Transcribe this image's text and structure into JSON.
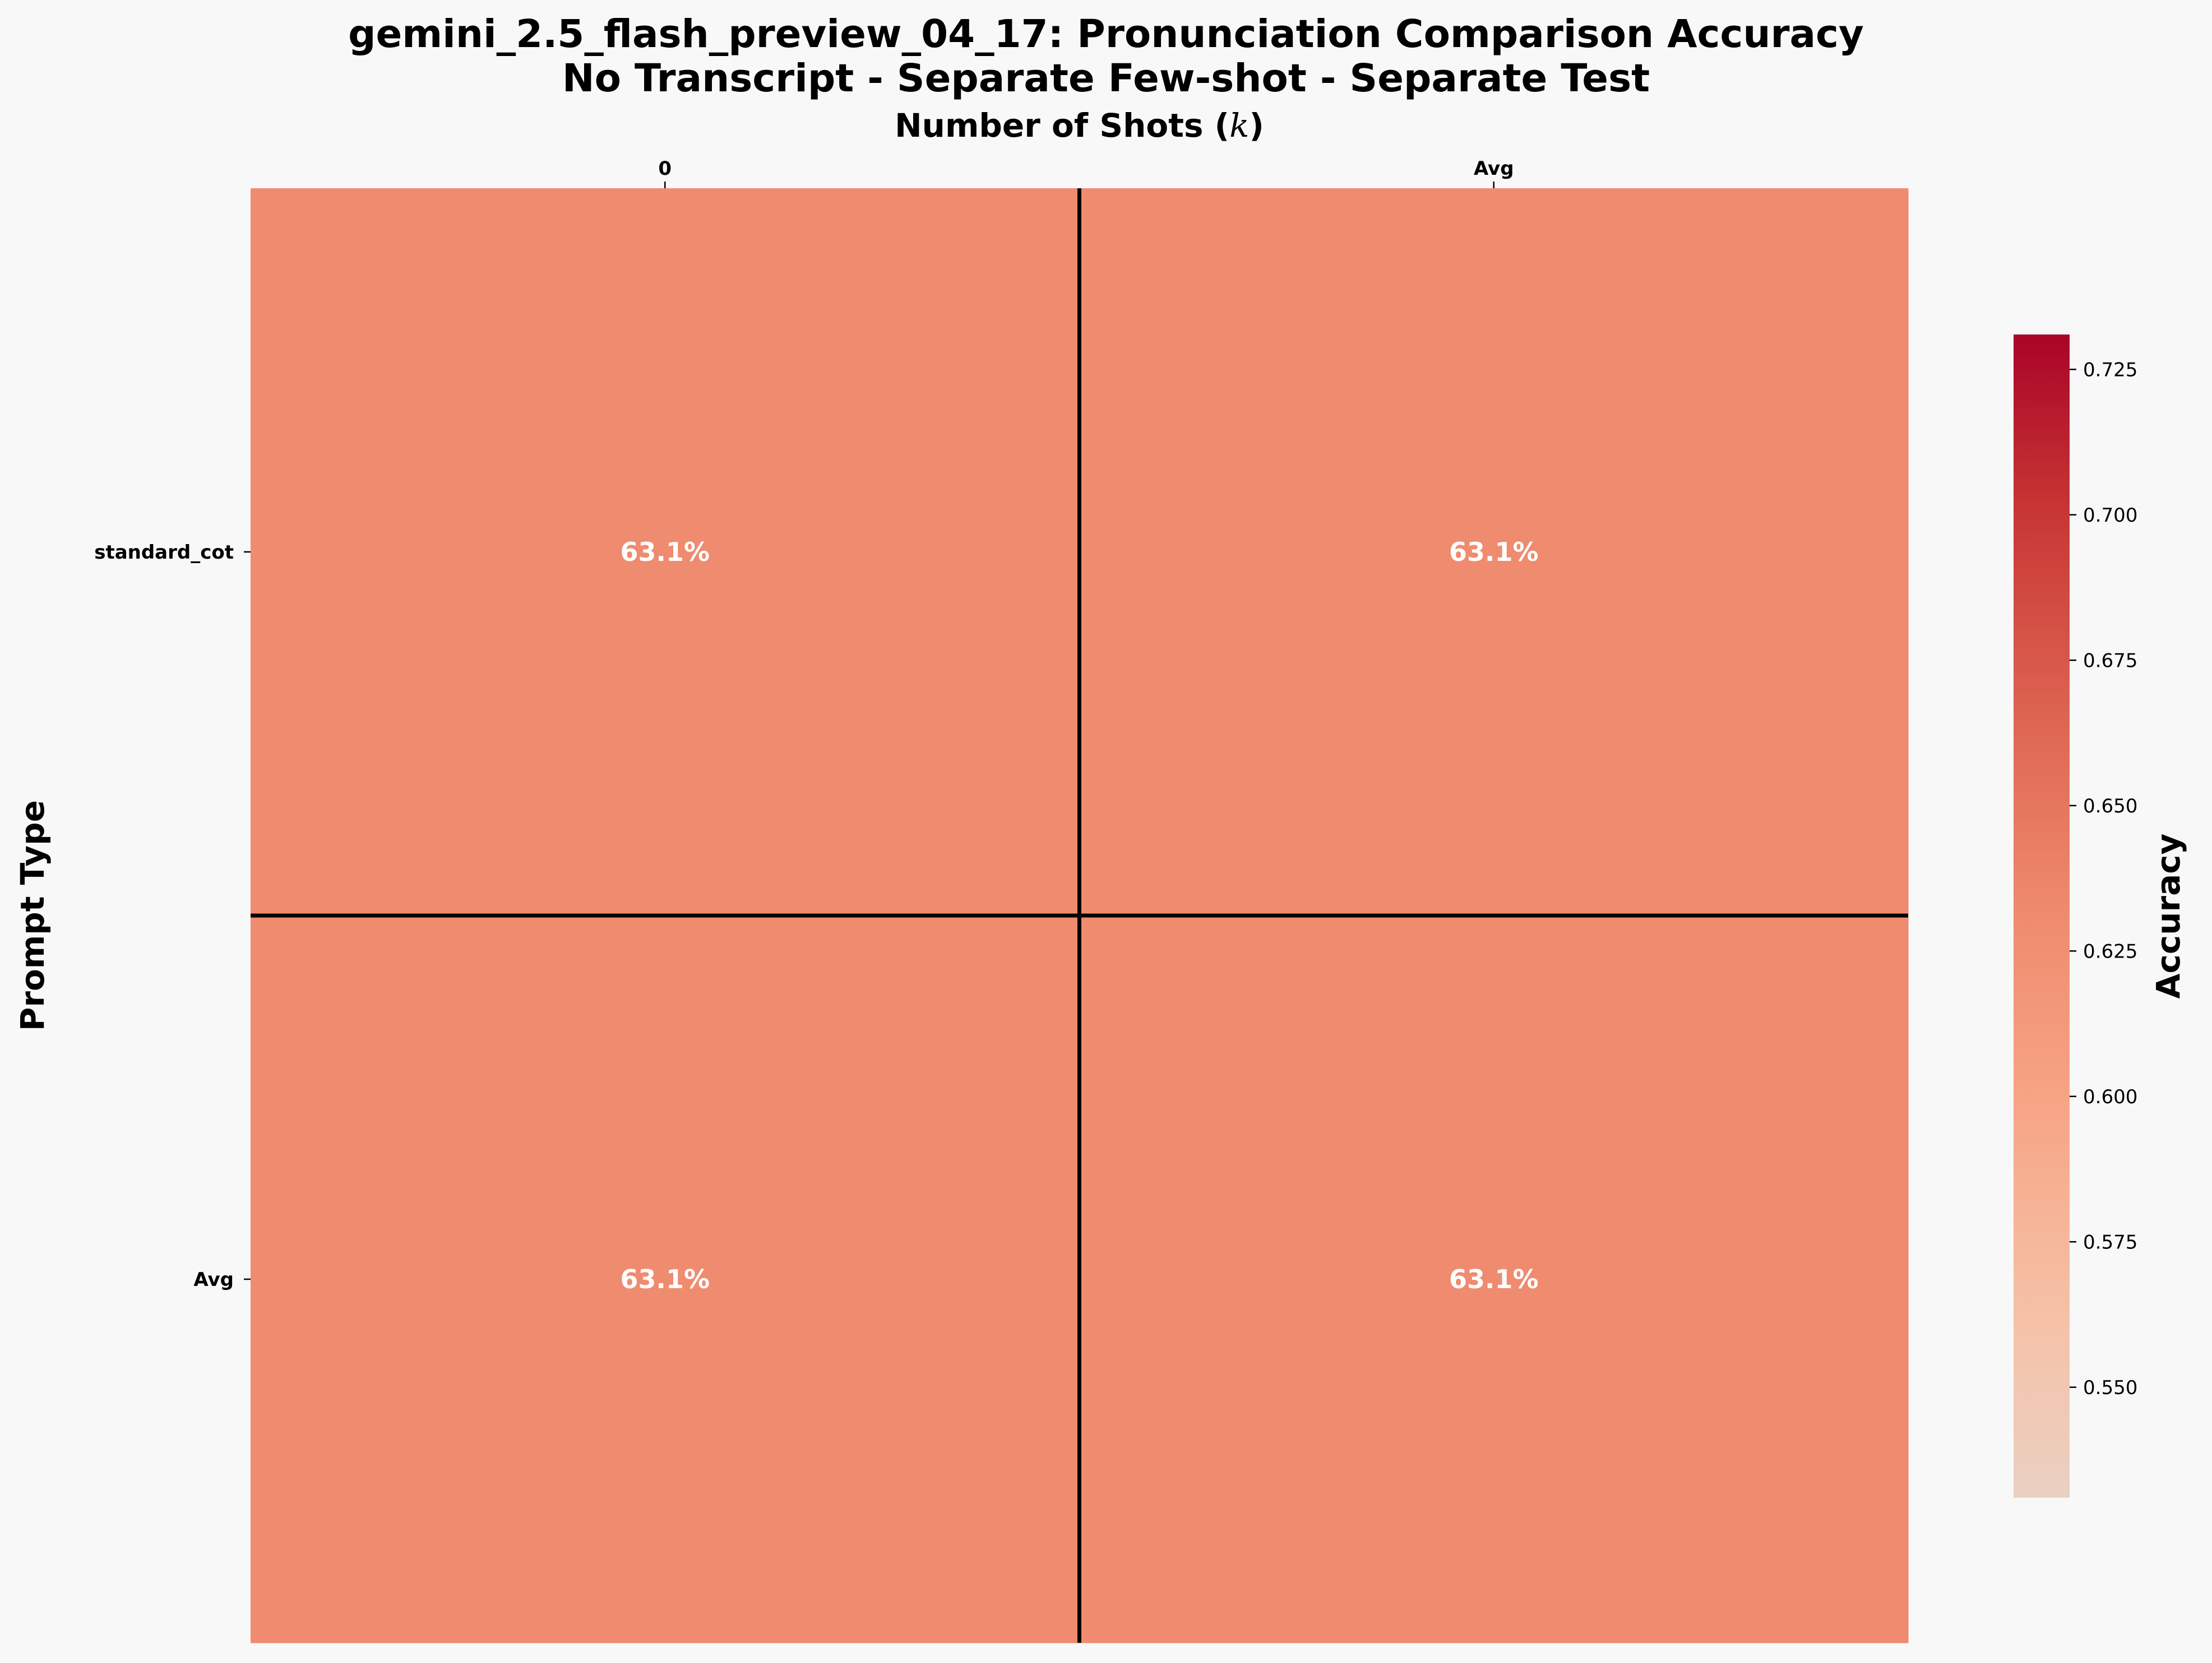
{
  "title_lines": [
    "gemini_2.5_flash_preview_04_17: Pronunciation Comparison Accuracy",
    "No Transcript - Separate Few-shot - Separate Test"
  ],
  "chart_data": {
    "type": "heatmap",
    "title": "gemini_2.5_flash_preview_04_17: Pronunciation Comparison Accuracy\nNo Transcript - Separate Few-shot - Separate Test",
    "xlabel": "Number of Shots (k)",
    "ylabel": "Prompt Type",
    "x_categories": [
      "0",
      "Avg"
    ],
    "y_categories": [
      "standard_cot",
      "Avg"
    ],
    "values": [
      [
        0.631,
        0.631
      ],
      [
        0.631,
        0.631
      ]
    ],
    "cell_labels": [
      [
        "63.1%",
        "63.1%"
      ],
      [
        "63.1%",
        "63.1%"
      ]
    ],
    "colorbar": {
      "label": "Accuracy",
      "range": [
        0.531,
        0.731
      ],
      "ticks": [
        "0.550",
        "0.575",
        "0.600",
        "0.625",
        "0.650",
        "0.675",
        "0.700",
        "0.725"
      ],
      "colormap": "Reds-like (light peach to dark red)"
    },
    "cell_color": "#ef8b6f",
    "separator_color": "#000000",
    "x_axis_position": "top"
  }
}
